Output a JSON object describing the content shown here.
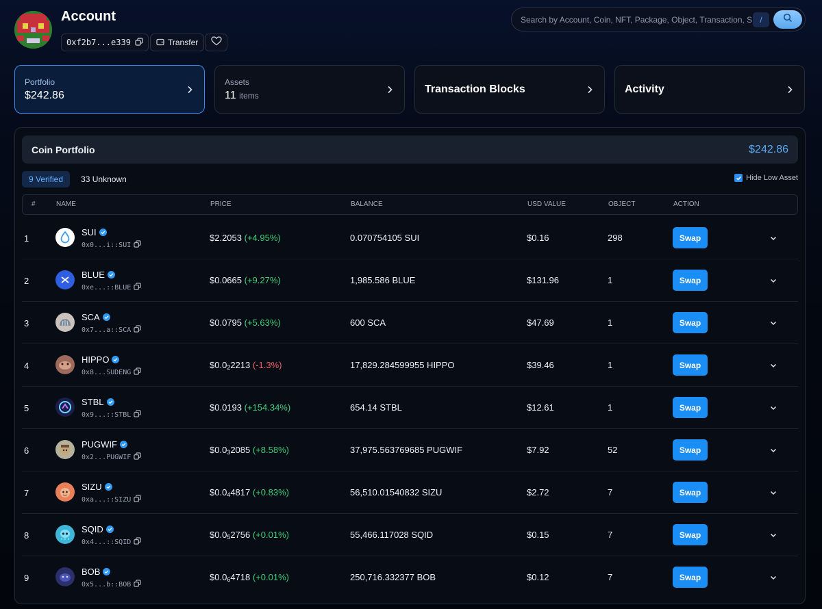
{
  "header": {
    "title": "Account",
    "address": "0xf2b7...e339",
    "transfer_label": "Transfer"
  },
  "search": {
    "placeholder": "Search by Account, Coin, NFT, Package, Object, Transaction, S...",
    "shortcut": "/"
  },
  "cards": {
    "portfolio": {
      "label": "Portfolio",
      "value": "$242.86"
    },
    "assets": {
      "label": "Assets",
      "count": "11",
      "unit": "items"
    },
    "transaction_blocks": {
      "label": "Transaction Blocks"
    },
    "activity": {
      "label": "Activity"
    }
  },
  "coin_portfolio": {
    "title": "Coin Portfolio",
    "total": "$242.86",
    "tabs": {
      "verified": "9 Verified",
      "unknown": "33 Unknown"
    },
    "hide_low_label": "Hide Low Asset",
    "hide_low_checked": true,
    "columns": {
      "idx": "#",
      "name": "NAME",
      "price": "PRICE",
      "balance": "BALANCE",
      "usd": "USD VALUE",
      "object": "OBJECT",
      "action": "ACTION"
    },
    "swap_label": "Swap",
    "rows": [
      {
        "idx": "1",
        "symbol": "SUI",
        "addr": "0x0...i::SUI",
        "price_pre": "$2.2053",
        "price_sub": "",
        "price_post": "",
        "change": "(+4.95%)",
        "change_dir": "up",
        "balance": "0.070754105 SUI",
        "usd": "$0.16",
        "object": "298",
        "logo_color": "#ffffff",
        "logo_icon": "sui-drop-icon"
      },
      {
        "idx": "2",
        "symbol": "BLUE",
        "addr": "0xe...::BLUE",
        "price_pre": "$0.0665",
        "price_sub": "",
        "price_post": "",
        "change": "(+9.27%)",
        "change_dir": "up",
        "balance": "1,985.586 BLUE",
        "usd": "$131.96",
        "object": "1",
        "logo_color": "#2f5fe0",
        "logo_icon": "bluefin-icon"
      },
      {
        "idx": "3",
        "symbol": "SCA",
        "addr": "0x7...a::SCA",
        "price_pre": "$0.0795",
        "price_sub": "",
        "price_post": "",
        "change": "(+5.63%)",
        "change_dir": "up",
        "balance": "600 SCA",
        "usd": "$47.69",
        "object": "1",
        "logo_color": "#c9c2bd",
        "logo_icon": "scallop-icon"
      },
      {
        "idx": "4",
        "symbol": "HIPPO",
        "addr": "0x8...SUDENG",
        "price_pre": "$0.0",
        "price_sub": "2",
        "price_post": "2213",
        "change": "(-1.3%)",
        "change_dir": "down",
        "balance": "17,829.284599955 HIPPO",
        "usd": "$39.46",
        "object": "1",
        "logo_color": "#9d6a5c",
        "logo_icon": "hippo-icon"
      },
      {
        "idx": "5",
        "symbol": "STBL",
        "addr": "0x9...::STBL",
        "price_pre": "$0.0193",
        "price_sub": "",
        "price_post": "",
        "change": "(+154.34%)",
        "change_dir": "up",
        "balance": "654.14 STBL",
        "usd": "$12.61",
        "object": "1",
        "logo_color": "#1b1e4a",
        "logo_icon": "stbl-icon"
      },
      {
        "idx": "6",
        "symbol": "PUGWIF",
        "addr": "0x2...PUGWIF",
        "price_pre": "$0.0",
        "price_sub": "3",
        "price_post": "2085",
        "change": "(+8.58%)",
        "change_dir": "up",
        "balance": "37,975.563769685 PUGWIF",
        "usd": "$7.92",
        "object": "52",
        "logo_color": "#b4b29a",
        "logo_icon": "pugwif-icon"
      },
      {
        "idx": "7",
        "symbol": "SIZU",
        "addr": "0xa...::SIZU",
        "price_pre": "$0.0",
        "price_sub": "4",
        "price_post": "4817",
        "change": "(+0.83%)",
        "change_dir": "up",
        "balance": "56,510.01540832 SIZU",
        "usd": "$2.72",
        "object": "7",
        "logo_color": "#e8805a",
        "logo_icon": "sizu-icon"
      },
      {
        "idx": "8",
        "symbol": "SQID",
        "addr": "0x4...::SQID",
        "price_pre": "$0.0",
        "price_sub": "5",
        "price_post": "2756",
        "change": "(+0.01%)",
        "change_dir": "up",
        "balance": "55,466.117028 SQID",
        "usd": "$0.15",
        "object": "7",
        "logo_color": "#3fb6d8",
        "logo_icon": "sqid-icon"
      },
      {
        "idx": "9",
        "symbol": "BOB",
        "addr": "0x5...b::BOB",
        "price_pre": "$0.0",
        "price_sub": "6",
        "price_post": "4718",
        "change": "(+0.01%)",
        "change_dir": "up",
        "balance": "250,716.332377 BOB",
        "usd": "$0.12",
        "object": "7",
        "logo_color": "#2b2f6a",
        "logo_icon": "bob-icon"
      }
    ]
  }
}
